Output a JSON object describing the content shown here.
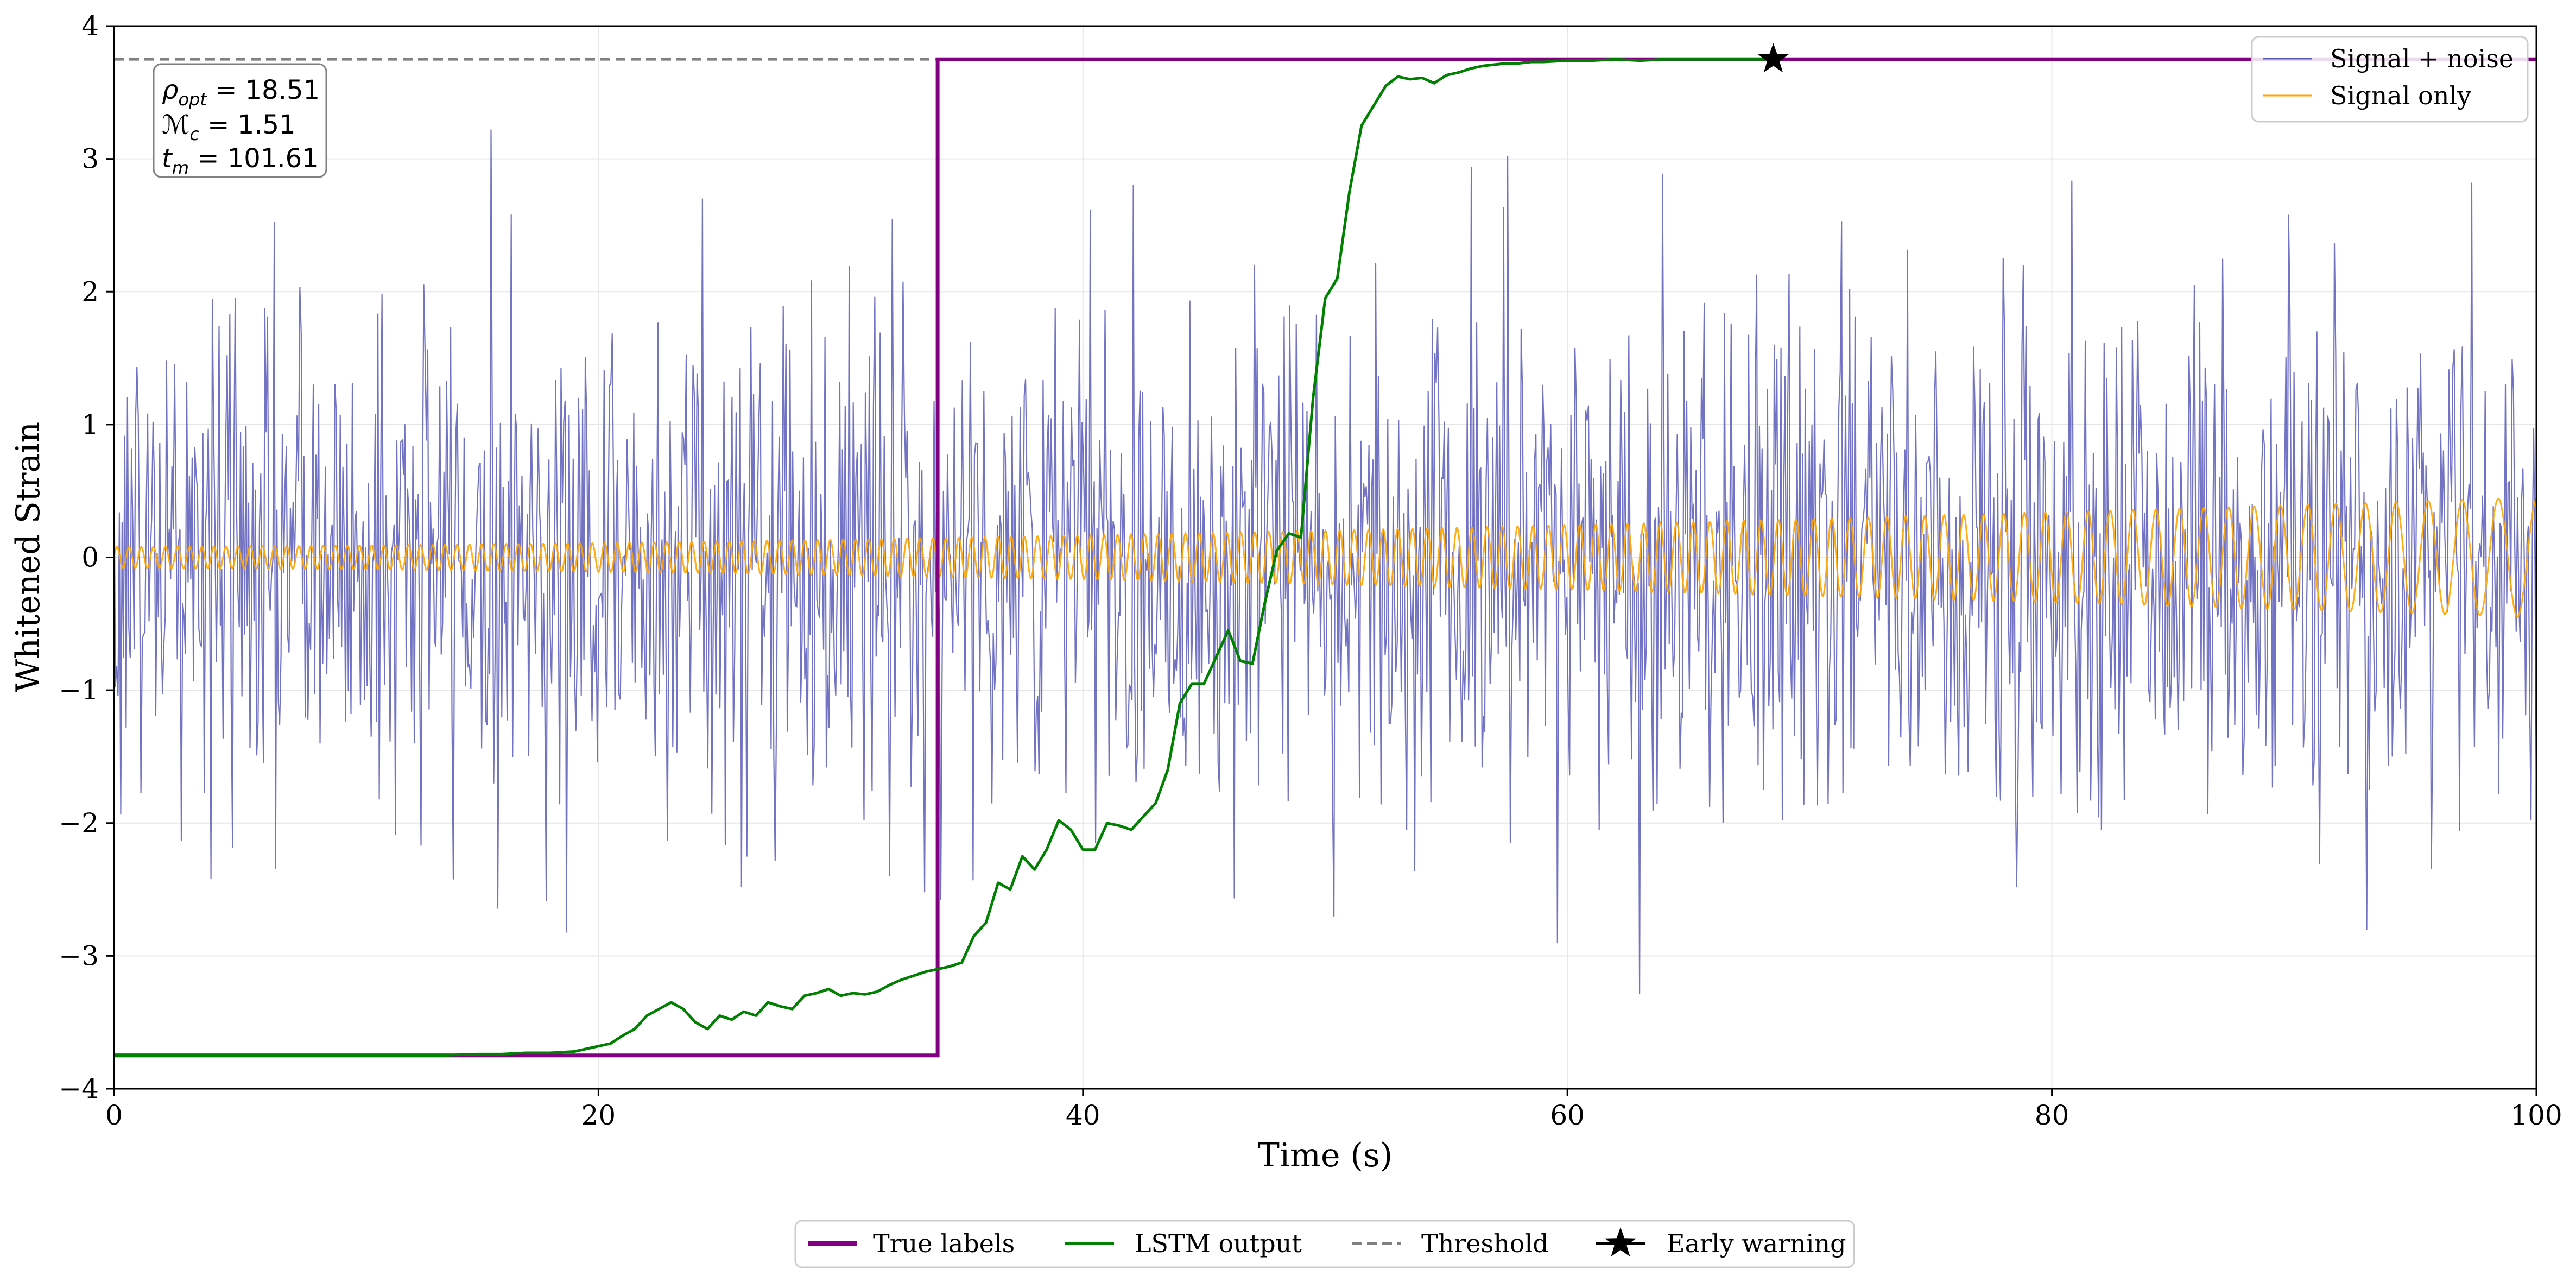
{
  "chart_data": {
    "type": "line",
    "title": "",
    "xlabel": "Time (s)",
    "ylabel": "Whitened Strain",
    "xlim": [
      0,
      100
    ],
    "ylim": [
      -4,
      4
    ],
    "xticks": [
      0,
      20,
      40,
      60,
      80,
      100
    ],
    "yticks": [
      -4,
      -3,
      -2,
      -1,
      0,
      1,
      2,
      3,
      4
    ],
    "xtick_labels": [
      "0",
      "20",
      "40",
      "60",
      "80",
      "100"
    ],
    "ytick_labels": [
      "−4",
      "−3",
      "−2",
      "−1",
      "0",
      "1",
      "2",
      "3",
      "4"
    ],
    "grid": true,
    "info_box": {
      "lines": [
        {
          "sym": "ρ",
          "sub": "opt",
          "value": " = 18.51"
        },
        {
          "sym": "ℳ",
          "sub": "c",
          "value": " = 1.51"
        },
        {
          "sym": "t",
          "sub": "m",
          "value": " = 101.61"
        }
      ]
    },
    "legend_upper": {
      "placement": "top-right",
      "entries": [
        {
          "label": "Signal + noise",
          "color": "#5b5bb8"
        },
        {
          "label": "Signal only",
          "color": "#ffa500"
        }
      ]
    },
    "legend_lower": {
      "placement": "bottom-center",
      "entries": [
        {
          "label": "True labels",
          "color": "#800080",
          "style": "solid"
        },
        {
          "label": "LSTM output",
          "color": "#008000",
          "style": "solid"
        },
        {
          "label": "Threshold",
          "color": "#808080",
          "style": "dashed"
        },
        {
          "label": "Early warning",
          "color": "#000000",
          "style": "star"
        }
      ]
    },
    "series": [
      {
        "name": "Signal + noise",
        "kind": "noise",
        "color": "#5b5bb8",
        "std": 1.0,
        "x_range": [
          0,
          100
        ],
        "n_points": 1800,
        "description_values": "random whitened strain noise, approx within [-3.3, 3.4]"
      },
      {
        "name": "Signal only",
        "kind": "chirp",
        "color": "#ffa500",
        "x_range": [
          0,
          100
        ],
        "amplitude_start": 0.08,
        "amplitude_end": 0.45,
        "freq_start_hz": 2.0,
        "freq_end_hz": 0.6
      },
      {
        "name": "True labels",
        "color": "#800080",
        "x": [
          0,
          34.0,
          34.0,
          100
        ],
        "y": [
          -3.75,
          -3.75,
          3.75,
          3.75
        ]
      },
      {
        "name": "LSTM output",
        "color": "#008000",
        "x": [
          0,
          5,
          10,
          13.5,
          15,
          16,
          17,
          18,
          19,
          20,
          20.5,
          21,
          21.5,
          22,
          22.5,
          23,
          23.5,
          24,
          24.5,
          25,
          25.5,
          26,
          26.5,
          27,
          27.5,
          28,
          28.5,
          29,
          29.5,
          30,
          30.5,
          31,
          31.5,
          32,
          32.5,
          33,
          33.5,
          34,
          34.5,
          35,
          35.5,
          36,
          36.5,
          37,
          37.5,
          38,
          38.5,
          39,
          39.5,
          40,
          40.5,
          41,
          41.5,
          42,
          42.5,
          43,
          43.5,
          44,
          44.5,
          45,
          45.5,
          46,
          46.5,
          47,
          47.5,
          48,
          48.5,
          49,
          49.5,
          50,
          50.5,
          51,
          51.5,
          52,
          52.5,
          53,
          53.5,
          54,
          54.5,
          55,
          55.5,
          56,
          56.5,
          57,
          57.5,
          58,
          58.5,
          59,
          60,
          61,
          62,
          63,
          64,
          65,
          66,
          67,
          68,
          68.5
        ],
        "y": [
          -3.75,
          -3.75,
          -3.75,
          -3.75,
          -3.74,
          -3.74,
          -3.73,
          -3.73,
          -3.72,
          -3.68,
          -3.66,
          -3.6,
          -3.55,
          -3.45,
          -3.4,
          -3.35,
          -3.4,
          -3.5,
          -3.55,
          -3.45,
          -3.48,
          -3.42,
          -3.45,
          -3.35,
          -3.38,
          -3.4,
          -3.3,
          -3.28,
          -3.25,
          -3.3,
          -3.28,
          -3.29,
          -3.27,
          -3.22,
          -3.18,
          -3.15,
          -3.12,
          -3.1,
          -3.08,
          -3.05,
          -2.85,
          -2.75,
          -2.45,
          -2.5,
          -2.25,
          -2.35,
          -2.2,
          -1.98,
          -2.05,
          -2.2,
          -2.2,
          -2.0,
          -2.02,
          -2.05,
          -1.95,
          -1.85,
          -1.6,
          -1.1,
          -0.95,
          -0.95,
          -0.75,
          -0.55,
          -0.78,
          -0.8,
          -0.35,
          0.05,
          0.18,
          0.15,
          1.2,
          1.95,
          2.1,
          2.75,
          3.25,
          3.4,
          3.55,
          3.62,
          3.6,
          3.61,
          3.57,
          3.63,
          3.65,
          3.68,
          3.7,
          3.71,
          3.72,
          3.72,
          3.73,
          3.73,
          3.74,
          3.74,
          3.75,
          3.74,
          3.75,
          3.75,
          3.75,
          3.75,
          3.75,
          3.75
        ]
      },
      {
        "name": "Threshold",
        "color": "#808080",
        "x": [
          0,
          100
        ],
        "y": [
          3.75,
          3.75
        ]
      },
      {
        "name": "Early warning",
        "color": "#000000",
        "x": [
          68.5
        ],
        "y": [
          3.75
        ]
      }
    ]
  }
}
